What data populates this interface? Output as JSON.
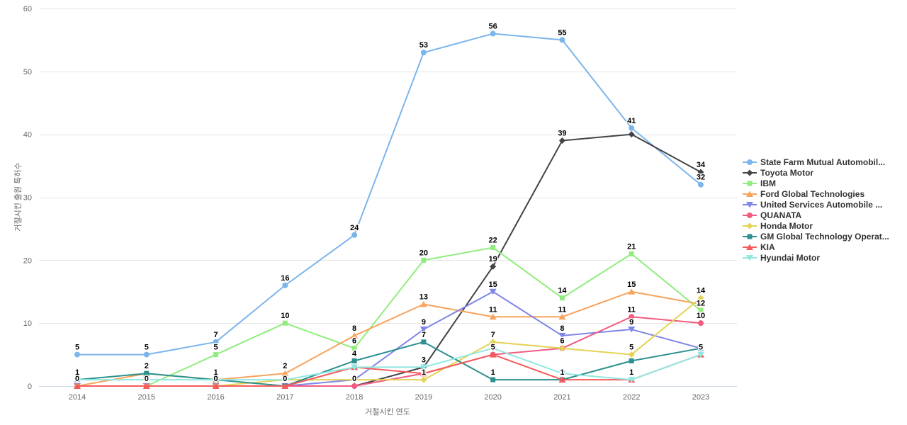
{
  "chart_data": {
    "type": "line",
    "title": "",
    "xlabel": "거절시킨 연도",
    "ylabel": "거절시킨 출원 특허수",
    "x": [
      2014,
      2015,
      2016,
      2017,
      2018,
      2019,
      2020,
      2021,
      2022,
      2023
    ],
    "ylim": [
      0,
      60
    ],
    "yticks": [
      0,
      10,
      20,
      30,
      40,
      50,
      60
    ],
    "grid": true,
    "legend_position": "right",
    "colors": {
      "grid": "#e6e6e6",
      "x_axis_line": "#ccd6eb",
      "tick_label": "#666666",
      "axis_title": "#666666",
      "data_label": "#000000",
      "legend_text": "#333333"
    },
    "series": [
      {
        "name": "State Farm Mutual Automobil...",
        "color": "#7cb5ec",
        "marker": "circle",
        "values": [
          5,
          5,
          7,
          16,
          24,
          53,
          56,
          55,
          41,
          32
        ],
        "show_label": [
          1,
          1,
          1,
          1,
          1,
          1,
          1,
          1,
          1,
          1
        ]
      },
      {
        "name": "Toyota Motor",
        "color": "#434348",
        "marker": "diamond",
        "values": [
          0,
          0,
          0,
          0,
          0,
          3,
          19,
          39,
          40,
          34
        ],
        "show_label": [
          0,
          0,
          0,
          0,
          0,
          1,
          1,
          1,
          0,
          1
        ]
      },
      {
        "name": "IBM",
        "color": "#90ed7d",
        "marker": "square",
        "values": [
          0,
          0,
          5,
          10,
          6,
          20,
          22,
          14,
          21,
          12
        ],
        "show_label": [
          0,
          0,
          1,
          1,
          1,
          1,
          1,
          1,
          1,
          1
        ]
      },
      {
        "name": "Ford Global Technologies",
        "color": "#f7a35c",
        "marker": "triangle",
        "values": [
          0,
          2,
          1,
          2,
          8,
          13,
          11,
          11,
          15,
          13
        ],
        "show_label": [
          1,
          0,
          0,
          1,
          1,
          1,
          1,
          1,
          1,
          0
        ]
      },
      {
        "name": "United Services Automobile ...",
        "color": "#8085e9",
        "marker": "triangle-down",
        "values": [
          0,
          0,
          0,
          0,
          1,
          9,
          15,
          8,
          9,
          6
        ],
        "show_label": [
          0,
          0,
          0,
          0,
          0,
          1,
          1,
          1,
          1,
          0
        ]
      },
      {
        "name": "QUANATA",
        "color": "#f15c80",
        "marker": "circle",
        "values": [
          0,
          0,
          0,
          0,
          0,
          2,
          5,
          6,
          11,
          10
        ],
        "show_label": [
          0,
          0,
          0,
          0,
          1,
          0,
          1,
          1,
          1,
          1
        ]
      },
      {
        "name": "Honda Motor",
        "color": "#e4d354",
        "marker": "diamond",
        "values": [
          0,
          0,
          0,
          1,
          1,
          1,
          7,
          6,
          5,
          14
        ],
        "show_label": [
          0,
          1,
          0,
          0,
          0,
          1,
          1,
          0,
          1,
          1
        ]
      },
      {
        "name": "GM Global Technology Operat...",
        "color": "#2b908f",
        "marker": "square",
        "values": [
          1,
          2,
          1,
          0,
          4,
          7,
          1,
          1,
          4,
          6
        ],
        "show_label": [
          1,
          1,
          1,
          1,
          1,
          1,
          1,
          0,
          0,
          0
        ]
      },
      {
        "name": "KIA",
        "color": "#f45b5b",
        "marker": "triangle",
        "values": [
          0,
          0,
          0,
          0,
          3,
          2,
          5,
          1,
          1,
          5
        ],
        "show_label": [
          0,
          0,
          1,
          0,
          0,
          0,
          0,
          1,
          0,
          1
        ]
      },
      {
        "name": "Hyundai Motor",
        "color": "#91e8e1",
        "marker": "triangle-down",
        "values": [
          1,
          1,
          1,
          1,
          3,
          3,
          6,
          2,
          1,
          5
        ],
        "show_label": [
          0,
          0,
          0,
          0,
          0,
          0,
          0,
          0,
          1,
          0
        ]
      }
    ]
  }
}
